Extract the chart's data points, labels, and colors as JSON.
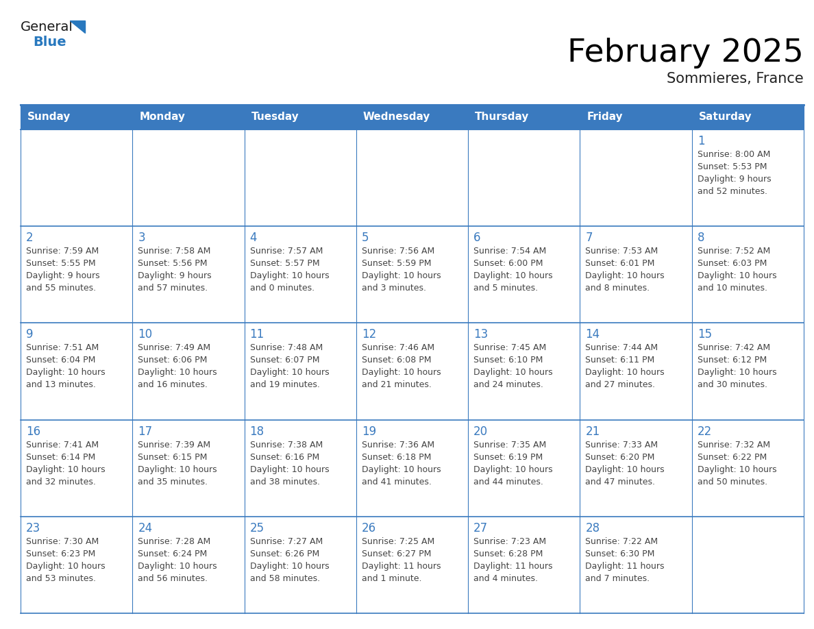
{
  "title": "February 2025",
  "subtitle": "Sommieres, France",
  "header_bg": "#3a7abf",
  "header_text": "#ffffff",
  "row_bg_odd": "#f2f2f2",
  "row_bg_even": "#ffffff",
  "border_color": "#3a7abf",
  "day_number_color": "#3a7abf",
  "text_color": "#444444",
  "days_of_week": [
    "Sunday",
    "Monday",
    "Tuesday",
    "Wednesday",
    "Thursday",
    "Friday",
    "Saturday"
  ],
  "logo_general_color": "#1a1a1a",
  "logo_blue_color": "#2878be",
  "calendar_data": [
    [
      null,
      null,
      null,
      null,
      null,
      null,
      {
        "day": 1,
        "sunrise": "8:00 AM",
        "sunset": "5:53 PM",
        "daylight_line1": "9 hours",
        "daylight_line2": "and 52 minutes."
      }
    ],
    [
      {
        "day": 2,
        "sunrise": "7:59 AM",
        "sunset": "5:55 PM",
        "daylight_line1": "9 hours",
        "daylight_line2": "and 55 minutes."
      },
      {
        "day": 3,
        "sunrise": "7:58 AM",
        "sunset": "5:56 PM",
        "daylight_line1": "9 hours",
        "daylight_line2": "and 57 minutes."
      },
      {
        "day": 4,
        "sunrise": "7:57 AM",
        "sunset": "5:57 PM",
        "daylight_line1": "10 hours",
        "daylight_line2": "and 0 minutes."
      },
      {
        "day": 5,
        "sunrise": "7:56 AM",
        "sunset": "5:59 PM",
        "daylight_line1": "10 hours",
        "daylight_line2": "and 3 minutes."
      },
      {
        "day": 6,
        "sunrise": "7:54 AM",
        "sunset": "6:00 PM",
        "daylight_line1": "10 hours",
        "daylight_line2": "and 5 minutes."
      },
      {
        "day": 7,
        "sunrise": "7:53 AM",
        "sunset": "6:01 PM",
        "daylight_line1": "10 hours",
        "daylight_line2": "and 8 minutes."
      },
      {
        "day": 8,
        "sunrise": "7:52 AM",
        "sunset": "6:03 PM",
        "daylight_line1": "10 hours",
        "daylight_line2": "and 10 minutes."
      }
    ],
    [
      {
        "day": 9,
        "sunrise": "7:51 AM",
        "sunset": "6:04 PM",
        "daylight_line1": "10 hours",
        "daylight_line2": "and 13 minutes."
      },
      {
        "day": 10,
        "sunrise": "7:49 AM",
        "sunset": "6:06 PM",
        "daylight_line1": "10 hours",
        "daylight_line2": "and 16 minutes."
      },
      {
        "day": 11,
        "sunrise": "7:48 AM",
        "sunset": "6:07 PM",
        "daylight_line1": "10 hours",
        "daylight_line2": "and 19 minutes."
      },
      {
        "day": 12,
        "sunrise": "7:46 AM",
        "sunset": "6:08 PM",
        "daylight_line1": "10 hours",
        "daylight_line2": "and 21 minutes."
      },
      {
        "day": 13,
        "sunrise": "7:45 AM",
        "sunset": "6:10 PM",
        "daylight_line1": "10 hours",
        "daylight_line2": "and 24 minutes."
      },
      {
        "day": 14,
        "sunrise": "7:44 AM",
        "sunset": "6:11 PM",
        "daylight_line1": "10 hours",
        "daylight_line2": "and 27 minutes."
      },
      {
        "day": 15,
        "sunrise": "7:42 AM",
        "sunset": "6:12 PM",
        "daylight_line1": "10 hours",
        "daylight_line2": "and 30 minutes."
      }
    ],
    [
      {
        "day": 16,
        "sunrise": "7:41 AM",
        "sunset": "6:14 PM",
        "daylight_line1": "10 hours",
        "daylight_line2": "and 32 minutes."
      },
      {
        "day": 17,
        "sunrise": "7:39 AM",
        "sunset": "6:15 PM",
        "daylight_line1": "10 hours",
        "daylight_line2": "and 35 minutes."
      },
      {
        "day": 18,
        "sunrise": "7:38 AM",
        "sunset": "6:16 PM",
        "daylight_line1": "10 hours",
        "daylight_line2": "and 38 minutes."
      },
      {
        "day": 19,
        "sunrise": "7:36 AM",
        "sunset": "6:18 PM",
        "daylight_line1": "10 hours",
        "daylight_line2": "and 41 minutes."
      },
      {
        "day": 20,
        "sunrise": "7:35 AM",
        "sunset": "6:19 PM",
        "daylight_line1": "10 hours",
        "daylight_line2": "and 44 minutes."
      },
      {
        "day": 21,
        "sunrise": "7:33 AM",
        "sunset": "6:20 PM",
        "daylight_line1": "10 hours",
        "daylight_line2": "and 47 minutes."
      },
      {
        "day": 22,
        "sunrise": "7:32 AM",
        "sunset": "6:22 PM",
        "daylight_line1": "10 hours",
        "daylight_line2": "and 50 minutes."
      }
    ],
    [
      {
        "day": 23,
        "sunrise": "7:30 AM",
        "sunset": "6:23 PM",
        "daylight_line1": "10 hours",
        "daylight_line2": "and 53 minutes."
      },
      {
        "day": 24,
        "sunrise": "7:28 AM",
        "sunset": "6:24 PM",
        "daylight_line1": "10 hours",
        "daylight_line2": "and 56 minutes."
      },
      {
        "day": 25,
        "sunrise": "7:27 AM",
        "sunset": "6:26 PM",
        "daylight_line1": "10 hours",
        "daylight_line2": "and 58 minutes."
      },
      {
        "day": 26,
        "sunrise": "7:25 AM",
        "sunset": "6:27 PM",
        "daylight_line1": "11 hours",
        "daylight_line2": "and 1 minute."
      },
      {
        "day": 27,
        "sunrise": "7:23 AM",
        "sunset": "6:28 PM",
        "daylight_line1": "11 hours",
        "daylight_line2": "and 4 minutes."
      },
      {
        "day": 28,
        "sunrise": "7:22 AM",
        "sunset": "6:30 PM",
        "daylight_line1": "11 hours",
        "daylight_line2": "and 7 minutes."
      },
      null
    ]
  ]
}
